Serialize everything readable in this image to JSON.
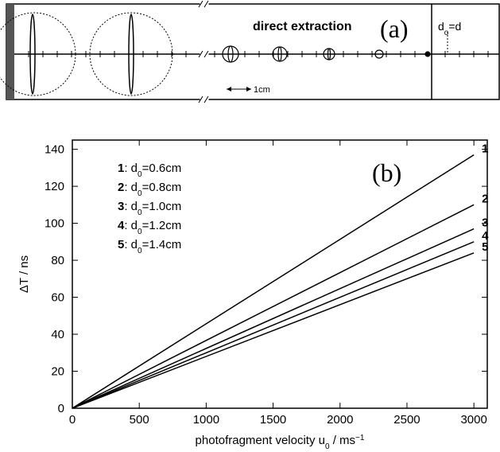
{
  "panel_a": {
    "title": "direct extraction",
    "label": "(a)",
    "distance": [
      "d",
      "o",
      "=d"
    ],
    "scale": "1cm"
  },
  "chart_data": {
    "type": "line",
    "panel_label": "(b)",
    "xlabel": [
      "photofragment velocity u",
      "0",
      " / ms",
      "−1"
    ],
    "ylabel": "ΔT / ns",
    "x": [
      0,
      3000
    ],
    "series": [
      {
        "name": "1",
        "legend": [
          ": d",
          "0",
          "=0.6cm"
        ],
        "color": "#000",
        "values": [
          0,
          137
        ]
      },
      {
        "name": "2",
        "legend": [
          ": d",
          "0",
          "=0.8cm"
        ],
        "color": "#000",
        "values": [
          0,
          110
        ]
      },
      {
        "name": "3",
        "legend": [
          ": d",
          "0",
          "=1.0cm"
        ],
        "color": "#000",
        "values": [
          0,
          97
        ]
      },
      {
        "name": "4",
        "legend": [
          ": d",
          "0",
          "=1.2cm"
        ],
        "color": "#000",
        "values": [
          0,
          90
        ]
      },
      {
        "name": "5",
        "legend": [
          ": d",
          "0",
          "=1.4cm"
        ],
        "color": "#000",
        "values": [
          0,
          84
        ]
      }
    ],
    "xlim": [
      0,
      3100
    ],
    "ylim": [
      0,
      145
    ],
    "xticks": [
      0,
      500,
      1000,
      1500,
      2000,
      2500,
      3000
    ],
    "yticks": [
      0,
      20,
      40,
      60,
      80,
      100,
      120,
      140
    ],
    "grid": false
  }
}
